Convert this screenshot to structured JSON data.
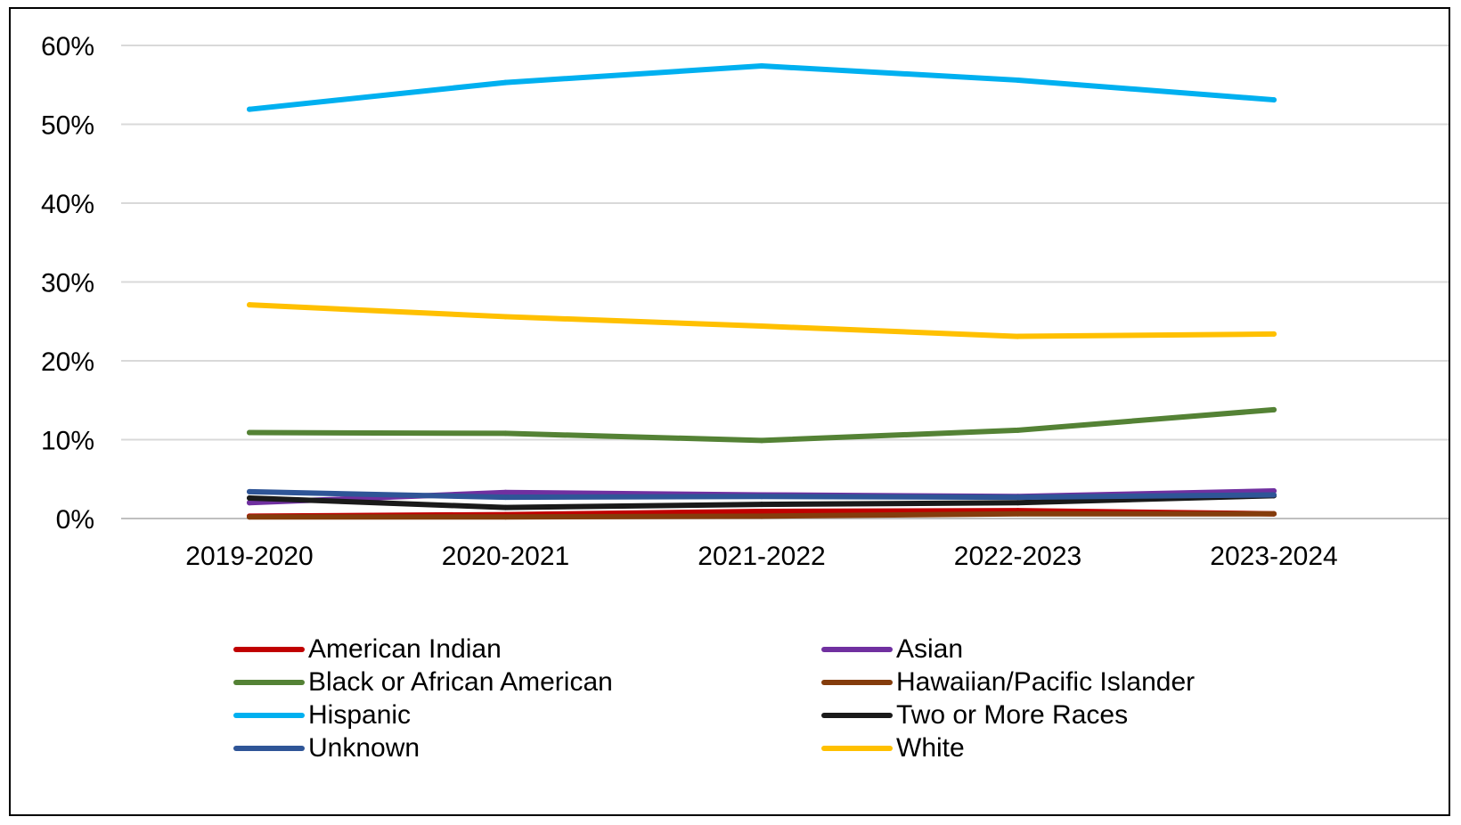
{
  "chart_data": {
    "type": "line",
    "title": "",
    "xlabel": "",
    "ylabel": "",
    "categories": [
      "2019-2020",
      "2020-2021",
      "2021-2022",
      "2022-2023",
      "2023-2024"
    ],
    "ylim": [
      0,
      60
    ],
    "yticks": [
      0,
      10,
      20,
      30,
      40,
      50,
      60
    ],
    "ytick_labels": [
      "0%",
      "10%",
      "20%",
      "30%",
      "40%",
      "50%",
      "60%"
    ],
    "grid": true,
    "legend_position": "bottom",
    "series": [
      {
        "name": "American Indian",
        "color": "#c00000",
        "values": [
          0.3,
          0.5,
          0.9,
          1.0,
          0.6
        ]
      },
      {
        "name": "Asian",
        "color": "#7030a0",
        "values": [
          2.0,
          3.3,
          3.0,
          2.8,
          3.5
        ]
      },
      {
        "name": "Black or African American",
        "color": "#548235",
        "values": [
          10.9,
          10.8,
          9.9,
          11.2,
          13.8
        ]
      },
      {
        "name": "Hawaiian/Pacific Islander",
        "color": "#843c0c",
        "values": [
          0.2,
          0.2,
          0.3,
          0.6,
          0.6
        ]
      },
      {
        "name": "Hispanic",
        "color": "#00b0f0",
        "values": [
          51.9,
          55.3,
          57.4,
          55.6,
          53.1
        ]
      },
      {
        "name": "Two or More Races",
        "color": "#1a1a1a",
        "values": [
          2.6,
          1.4,
          1.8,
          2.0,
          2.9
        ]
      },
      {
        "name": "Unknown",
        "color": "#2f5597",
        "values": [
          3.4,
          2.7,
          2.8,
          2.7,
          3.0
        ]
      },
      {
        "name": "White",
        "color": "#ffc000",
        "values": [
          27.1,
          25.6,
          24.4,
          23.1,
          23.4
        ]
      }
    ]
  }
}
